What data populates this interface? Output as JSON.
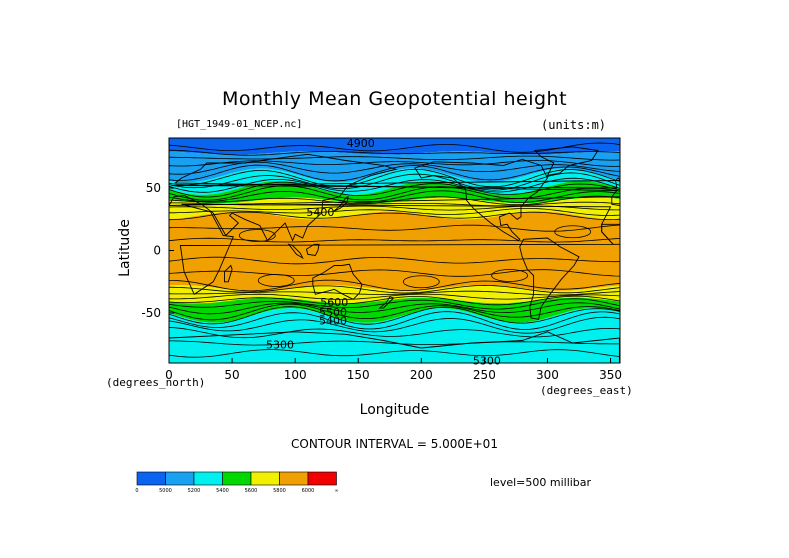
{
  "header": {
    "title": "Monthly Mean Geopotential height",
    "file": "[HGT_1949-01_NCEP.nc]",
    "units": "(units:m)"
  },
  "axes": {
    "ylabel": "Latitude",
    "xlabel": "Longitude",
    "x_unit": "(degrees_east)",
    "y_unit": "(degrees_north)"
  },
  "footer": {
    "contour_interval": "CONTOUR INTERVAL = 5.000E+01",
    "level": "level=500 millibar"
  },
  "chart_data": {
    "type": "heatmap",
    "title": "Monthly Mean Geopotential height",
    "xlabel": "Longitude",
    "ylabel": "Latitude",
    "xlim": [
      0,
      357.5
    ],
    "ylim": [
      -90,
      90
    ],
    "x_ticks": [
      0,
      50,
      100,
      150,
      200,
      250,
      300,
      350
    ],
    "y_ticks": [
      50,
      0,
      -50
    ],
    "contour_labels": [
      {
        "lon": 152,
        "lat": 86,
        "text": "4900"
      },
      {
        "lon": 120,
        "lat": 31,
        "text": "5400"
      },
      {
        "lon": 131,
        "lat": -41,
        "text": "5600"
      },
      {
        "lon": 130,
        "lat": -49,
        "text": "5500"
      },
      {
        "lon": 130,
        "lat": -56,
        "text": "5400"
      },
      {
        "lon": 88,
        "lat": -75,
        "text": "5300"
      },
      {
        "lon": 252,
        "lat": -88,
        "text": "5300"
      }
    ],
    "colorbar": {
      "colors": [
        "#0a64f0",
        "#1aa0f0",
        "#00f0f0",
        "#00d800",
        "#f0f000",
        "#f0a000",
        "#f00000"
      ],
      "labels": [
        "0",
        "5000",
        "5200",
        "5400",
        "5600",
        "5800",
        "6000",
        "∞"
      ]
    },
    "lat_bands": [
      {
        "lat_top": 90,
        "lat_bottom": 78,
        "color": "#0a64f0"
      },
      {
        "lat_top": 78,
        "lat_bottom": 60,
        "color": "#1aa0f0"
      },
      {
        "lat_top": 60,
        "lat_bottom": 50,
        "color": "#00f0f0"
      },
      {
        "lat_top": 50,
        "lat_bottom": 40,
        "color": "#00d800"
      },
      {
        "lat_top": 40,
        "lat_bottom": 28,
        "color": "#f0f000"
      },
      {
        "lat_top": 28,
        "lat_bottom": -30,
        "color": "#f0a000"
      },
      {
        "lat_top": -30,
        "lat_bottom": -40,
        "color": "#f0f000"
      },
      {
        "lat_top": -40,
        "lat_bottom": -52,
        "color": "#00d800"
      },
      {
        "lat_top": -52,
        "lat_bottom": -90,
        "color": "#00f0f0"
      }
    ]
  }
}
